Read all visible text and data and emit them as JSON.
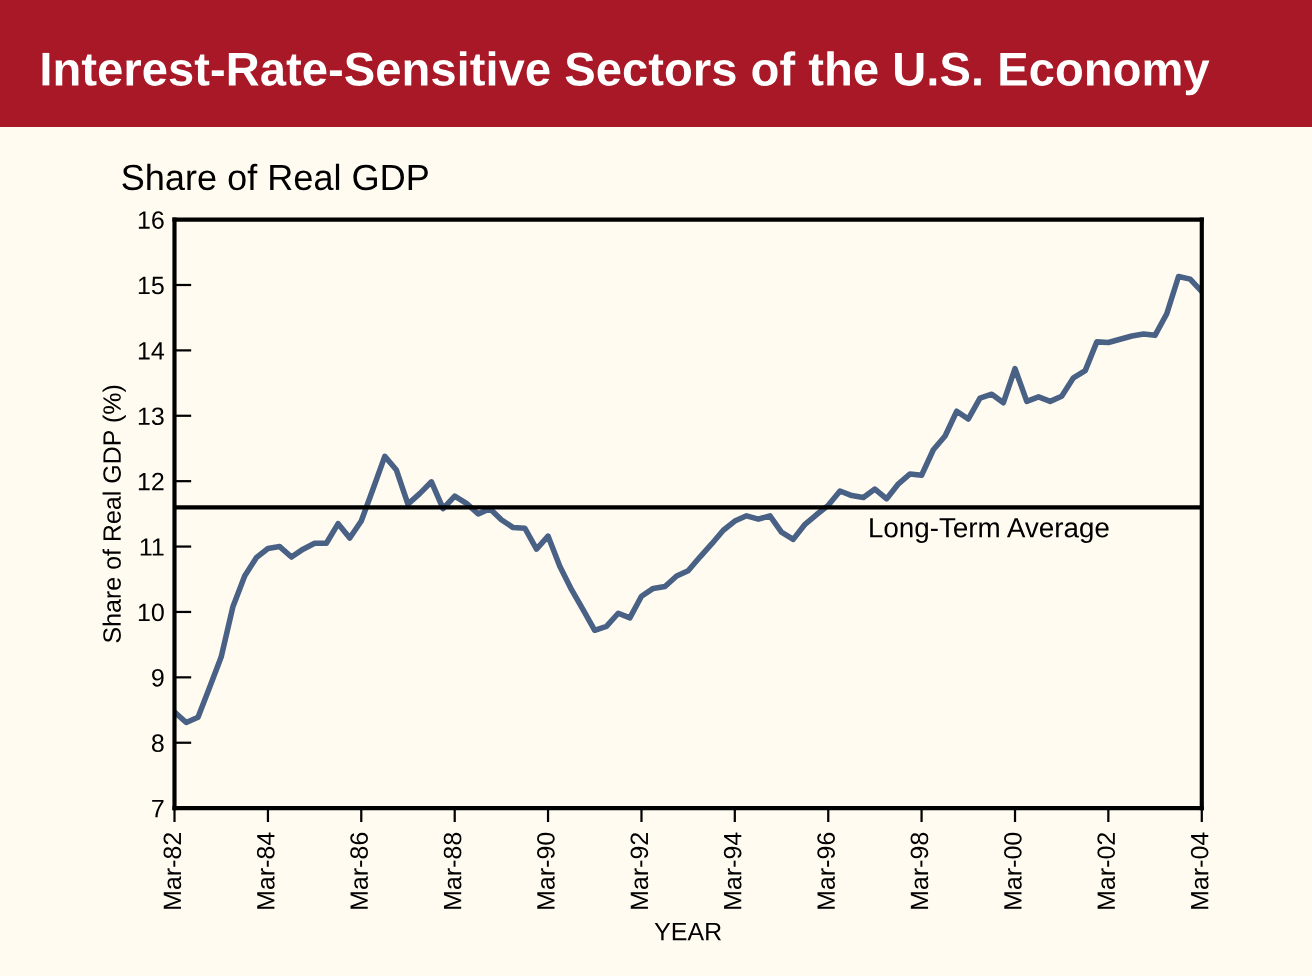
{
  "chart_data": {
    "type": "line",
    "title": "Interest-Rate-Sensitive Sectors of the U.S. Economy",
    "subtitle": "Share of Real GDP",
    "xlabel": "YEAR",
    "ylabel": "Share of Real GDP (%)",
    "x": [
      "1982-03",
      "1982-06",
      "1982-09",
      "1982-12",
      "1983-03",
      "1983-06",
      "1983-09",
      "1983-12",
      "1984-03",
      "1984-06",
      "1984-09",
      "1984-12",
      "1985-03",
      "1985-06",
      "1985-09",
      "1985-12",
      "1986-03",
      "1986-06",
      "1986-09",
      "1986-12",
      "1987-03",
      "1987-06",
      "1987-09",
      "1987-12",
      "1988-03",
      "1988-06",
      "1988-09",
      "1988-12",
      "1989-03",
      "1989-06",
      "1989-09",
      "1989-12",
      "1990-03",
      "1990-06",
      "1990-09",
      "1990-12",
      "1991-03",
      "1991-06",
      "1991-09",
      "1991-12",
      "1992-03",
      "1992-06",
      "1992-09",
      "1992-12",
      "1993-03",
      "1993-06",
      "1993-09",
      "1993-12",
      "1994-03",
      "1994-06",
      "1994-09",
      "1994-12",
      "1995-03",
      "1995-06",
      "1995-09",
      "1995-12",
      "1996-03",
      "1996-06",
      "1996-09",
      "1996-12",
      "1997-03",
      "1997-06",
      "1997-09",
      "1997-12",
      "1998-03",
      "1998-06",
      "1998-09",
      "1998-12",
      "1999-03",
      "1999-06",
      "1999-09",
      "1999-12",
      "2000-03",
      "2000-06",
      "2000-09",
      "2000-12",
      "2001-03",
      "2001-06",
      "2001-09",
      "2001-12",
      "2002-03",
      "2002-06",
      "2002-09",
      "2002-12",
      "2003-03",
      "2003-06",
      "2003-09",
      "2003-12",
      "2004-03"
    ],
    "series": [
      {
        "color": "#4a6186",
        "values": [
          8.47,
          8.31,
          8.39,
          8.85,
          9.31,
          10.08,
          10.55,
          10.83,
          10.97,
          11.0,
          10.84,
          10.96,
          11.05,
          11.05,
          11.35,
          11.13,
          11.39,
          11.88,
          12.38,
          12.17,
          11.65,
          11.81,
          11.99,
          11.58,
          11.77,
          11.66,
          11.5,
          11.58,
          11.41,
          11.29,
          11.28,
          10.96,
          11.16,
          10.7,
          10.34,
          10.03,
          9.72,
          9.78,
          9.98,
          9.91,
          10.24,
          10.36,
          10.39,
          10.55,
          10.63,
          10.84,
          11.04,
          11.25,
          11.39,
          11.47,
          11.42,
          11.47,
          11.22,
          11.11,
          11.34,
          11.49,
          11.63,
          11.85,
          11.78,
          11.75,
          11.88,
          11.73,
          11.96,
          12.11,
          12.09,
          12.48,
          12.69,
          13.07,
          12.95,
          13.27,
          13.33,
          13.2,
          13.72,
          13.22,
          13.29,
          13.22,
          13.3,
          13.58,
          13.69,
          14.13,
          14.12,
          14.17,
          14.22,
          14.25,
          14.23,
          14.56,
          15.13,
          15.09,
          14.9
        ]
      }
    ],
    "xlim": [
      "1982-03",
      "2004-03"
    ],
    "xticks": [
      {
        "value": "1982-03",
        "label": "Mar-82"
      },
      {
        "value": "1984-03",
        "label": "Mar-84"
      },
      {
        "value": "1986-03",
        "label": "Mar-86"
      },
      {
        "value": "1988-03",
        "label": "Mar-88"
      },
      {
        "value": "1990-03",
        "label": "Mar-90"
      },
      {
        "value": "1992-03",
        "label": "Mar-92"
      },
      {
        "value": "1994-03",
        "label": "Mar-94"
      },
      {
        "value": "1996-03",
        "label": "Mar-96"
      },
      {
        "value": "1998-03",
        "label": "Mar-98"
      },
      {
        "value": "2000-03",
        "label": "Mar-00"
      },
      {
        "value": "2002-03",
        "label": "Mar-02"
      },
      {
        "value": "2004-03",
        "label": "Mar-04"
      }
    ],
    "ylim": [
      7,
      16
    ],
    "yticks": [
      7,
      8,
      9,
      10,
      11,
      12,
      13,
      14,
      15,
      16
    ],
    "ref_lines": [
      {
        "axis": "y",
        "value": 11.6,
        "label": "Long-Term Average",
        "color": "#000000"
      }
    ],
    "grid": false,
    "legend": false,
    "marker": "none",
    "line_style": "solid"
  }
}
